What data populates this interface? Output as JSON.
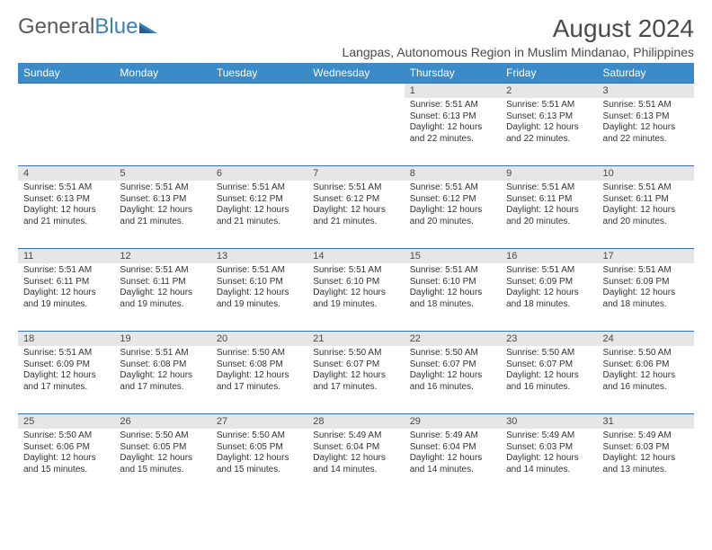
{
  "brand": {
    "part1": "General",
    "part2": "Blue"
  },
  "title": "August 2024",
  "location": "Langpas, Autonomous Region in Muslim Mindanao, Philippines",
  "colors": {
    "header_bg": "#3b8bc9",
    "header_text": "#ffffff",
    "daynum_bg": "#e6e6e6",
    "cell_border": "#3b6fa8",
    "text": "#333333",
    "brand_gray": "#5a5a5a",
    "brand_blue": "#3b7fc4"
  },
  "weekdays": [
    "Sunday",
    "Monday",
    "Tuesday",
    "Wednesday",
    "Thursday",
    "Friday",
    "Saturday"
  ],
  "weeks": [
    [
      {
        "n": "",
        "sr": "",
        "ss": "",
        "dl": ""
      },
      {
        "n": "",
        "sr": "",
        "ss": "",
        "dl": ""
      },
      {
        "n": "",
        "sr": "",
        "ss": "",
        "dl": ""
      },
      {
        "n": "",
        "sr": "",
        "ss": "",
        "dl": ""
      },
      {
        "n": "1",
        "sr": "Sunrise: 5:51 AM",
        "ss": "Sunset: 6:13 PM",
        "dl": "Daylight: 12 hours and 22 minutes."
      },
      {
        "n": "2",
        "sr": "Sunrise: 5:51 AM",
        "ss": "Sunset: 6:13 PM",
        "dl": "Daylight: 12 hours and 22 minutes."
      },
      {
        "n": "3",
        "sr": "Sunrise: 5:51 AM",
        "ss": "Sunset: 6:13 PM",
        "dl": "Daylight: 12 hours and 22 minutes."
      }
    ],
    [
      {
        "n": "4",
        "sr": "Sunrise: 5:51 AM",
        "ss": "Sunset: 6:13 PM",
        "dl": "Daylight: 12 hours and 21 minutes."
      },
      {
        "n": "5",
        "sr": "Sunrise: 5:51 AM",
        "ss": "Sunset: 6:13 PM",
        "dl": "Daylight: 12 hours and 21 minutes."
      },
      {
        "n": "6",
        "sr": "Sunrise: 5:51 AM",
        "ss": "Sunset: 6:12 PM",
        "dl": "Daylight: 12 hours and 21 minutes."
      },
      {
        "n": "7",
        "sr": "Sunrise: 5:51 AM",
        "ss": "Sunset: 6:12 PM",
        "dl": "Daylight: 12 hours and 21 minutes."
      },
      {
        "n": "8",
        "sr": "Sunrise: 5:51 AM",
        "ss": "Sunset: 6:12 PM",
        "dl": "Daylight: 12 hours and 20 minutes."
      },
      {
        "n": "9",
        "sr": "Sunrise: 5:51 AM",
        "ss": "Sunset: 6:11 PM",
        "dl": "Daylight: 12 hours and 20 minutes."
      },
      {
        "n": "10",
        "sr": "Sunrise: 5:51 AM",
        "ss": "Sunset: 6:11 PM",
        "dl": "Daylight: 12 hours and 20 minutes."
      }
    ],
    [
      {
        "n": "11",
        "sr": "Sunrise: 5:51 AM",
        "ss": "Sunset: 6:11 PM",
        "dl": "Daylight: 12 hours and 19 minutes."
      },
      {
        "n": "12",
        "sr": "Sunrise: 5:51 AM",
        "ss": "Sunset: 6:11 PM",
        "dl": "Daylight: 12 hours and 19 minutes."
      },
      {
        "n": "13",
        "sr": "Sunrise: 5:51 AM",
        "ss": "Sunset: 6:10 PM",
        "dl": "Daylight: 12 hours and 19 minutes."
      },
      {
        "n": "14",
        "sr": "Sunrise: 5:51 AM",
        "ss": "Sunset: 6:10 PM",
        "dl": "Daylight: 12 hours and 19 minutes."
      },
      {
        "n": "15",
        "sr": "Sunrise: 5:51 AM",
        "ss": "Sunset: 6:10 PM",
        "dl": "Daylight: 12 hours and 18 minutes."
      },
      {
        "n": "16",
        "sr": "Sunrise: 5:51 AM",
        "ss": "Sunset: 6:09 PM",
        "dl": "Daylight: 12 hours and 18 minutes."
      },
      {
        "n": "17",
        "sr": "Sunrise: 5:51 AM",
        "ss": "Sunset: 6:09 PM",
        "dl": "Daylight: 12 hours and 18 minutes."
      }
    ],
    [
      {
        "n": "18",
        "sr": "Sunrise: 5:51 AM",
        "ss": "Sunset: 6:09 PM",
        "dl": "Daylight: 12 hours and 17 minutes."
      },
      {
        "n": "19",
        "sr": "Sunrise: 5:51 AM",
        "ss": "Sunset: 6:08 PM",
        "dl": "Daylight: 12 hours and 17 minutes."
      },
      {
        "n": "20",
        "sr": "Sunrise: 5:50 AM",
        "ss": "Sunset: 6:08 PM",
        "dl": "Daylight: 12 hours and 17 minutes."
      },
      {
        "n": "21",
        "sr": "Sunrise: 5:50 AM",
        "ss": "Sunset: 6:07 PM",
        "dl": "Daylight: 12 hours and 17 minutes."
      },
      {
        "n": "22",
        "sr": "Sunrise: 5:50 AM",
        "ss": "Sunset: 6:07 PM",
        "dl": "Daylight: 12 hours and 16 minutes."
      },
      {
        "n": "23",
        "sr": "Sunrise: 5:50 AM",
        "ss": "Sunset: 6:07 PM",
        "dl": "Daylight: 12 hours and 16 minutes."
      },
      {
        "n": "24",
        "sr": "Sunrise: 5:50 AM",
        "ss": "Sunset: 6:06 PM",
        "dl": "Daylight: 12 hours and 16 minutes."
      }
    ],
    [
      {
        "n": "25",
        "sr": "Sunrise: 5:50 AM",
        "ss": "Sunset: 6:06 PM",
        "dl": "Daylight: 12 hours and 15 minutes."
      },
      {
        "n": "26",
        "sr": "Sunrise: 5:50 AM",
        "ss": "Sunset: 6:05 PM",
        "dl": "Daylight: 12 hours and 15 minutes."
      },
      {
        "n": "27",
        "sr": "Sunrise: 5:50 AM",
        "ss": "Sunset: 6:05 PM",
        "dl": "Daylight: 12 hours and 15 minutes."
      },
      {
        "n": "28",
        "sr": "Sunrise: 5:49 AM",
        "ss": "Sunset: 6:04 PM",
        "dl": "Daylight: 12 hours and 14 minutes."
      },
      {
        "n": "29",
        "sr": "Sunrise: 5:49 AM",
        "ss": "Sunset: 6:04 PM",
        "dl": "Daylight: 12 hours and 14 minutes."
      },
      {
        "n": "30",
        "sr": "Sunrise: 5:49 AM",
        "ss": "Sunset: 6:03 PM",
        "dl": "Daylight: 12 hours and 14 minutes."
      },
      {
        "n": "31",
        "sr": "Sunrise: 5:49 AM",
        "ss": "Sunset: 6:03 PM",
        "dl": "Daylight: 12 hours and 13 minutes."
      }
    ]
  ]
}
